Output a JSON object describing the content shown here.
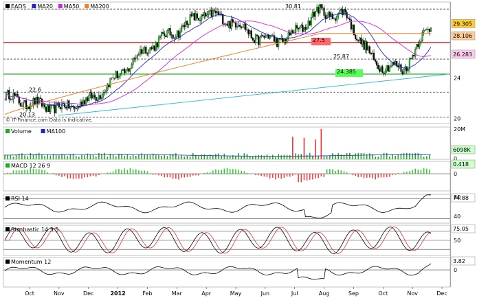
{
  "chart_data": [
    {
      "type": "candlestick",
      "panel": "price",
      "title": "EADS",
      "legend": [
        {
          "label": "EADS",
          "color": "#000000"
        },
        {
          "label": "MA20",
          "color": "#2222cc"
        },
        {
          "label": "MA50",
          "color": "#dd22dd"
        },
        {
          "label": "MA200",
          "color": "#f08020"
        }
      ],
      "watermark": "© IT-Finance.com   Data is Indicative.",
      "y_ticks": [
        "28",
        "24",
        "20"
      ],
      "ylim": [
        19.5,
        31.5
      ],
      "x_ticks": [
        "Oct",
        "Nov",
        "Dec",
        "2012",
        "Feb",
        "Mar",
        "Apr",
        "May",
        "Jun",
        "Jul",
        "Aug",
        "Sep",
        "Oct",
        "Nov",
        "Dec"
      ],
      "last_price": "29.305",
      "ma_values": {
        "ma200": "28.106",
        "ma20": "26.283",
        "ma50": "26.??"
      },
      "levels": [
        {
          "label": "30.81",
          "value": 30.81,
          "color": "#444444",
          "style": "dashed"
        },
        {
          "label": "27.5",
          "value": 27.5,
          "color": "#cc0000",
          "style": "solid"
        },
        {
          "label": "25.87",
          "value": 25.87,
          "color": "#444444",
          "style": "dashed"
        },
        {
          "label": "24.385",
          "value": 24.385,
          "color": "#00aa00",
          "style": "solid"
        },
        {
          "label": "22.6",
          "value": 22.6,
          "color": "#444444",
          "style": "dashed"
        },
        {
          "label": "20.13",
          "value": 20.13,
          "color": "#444444",
          "style": "dashed"
        }
      ],
      "trendline": {
        "color": "#22bbcc",
        "from": {
          "date": "Nov",
          "value": 20.3
        },
        "to": {
          "date": "Dec",
          "value": 24.4
        }
      },
      "close_series": {
        "dates": [
          "Sep 2011",
          "Oct 2011",
          "Nov 2011",
          "Dec 2011",
          "Jan 2012",
          "Feb 2012",
          "Mar 2012",
          "Apr 2012",
          "May 2012",
          "Jun 2012",
          "Jul 2012",
          "Aug 2012",
          "Sep 2012",
          "Oct 2012",
          "Nov 2012",
          "Dec 2012"
        ],
        "values": [
          22.2,
          21.4,
          21.0,
          21.8,
          24.2,
          27.0,
          28.6,
          30.4,
          29.6,
          27.8,
          27.9,
          30.5,
          30.2,
          25.5,
          24.8,
          29.3
        ]
      }
    },
    {
      "type": "bar",
      "panel": "volume",
      "legend": [
        {
          "label": "Volume",
          "color": "#22aa22"
        },
        {
          "label": "MA100",
          "color": "#2222cc"
        }
      ],
      "y_ticks": [
        "20M",
        "0"
      ],
      "last_value": "6098K"
    },
    {
      "type": "bar",
      "panel": "macd",
      "legend": [
        {
          "label": "MACD 12 26 9",
          "color": "#22aa22"
        }
      ],
      "y_ticks": [
        "0"
      ],
      "last_value": "0.418"
    },
    {
      "type": "line",
      "panel": "rsi",
      "legend": [
        {
          "label": "RSI 14",
          "color": "#000000"
        }
      ],
      "y_ticks": [
        "80",
        "40"
      ],
      "last_value": "74.88",
      "ylim": [
        20,
        90
      ]
    },
    {
      "type": "line",
      "panel": "stochastic",
      "legend": [
        {
          "label": "Stochastic 14 3 5",
          "color": "#000000"
        }
      ],
      "y_ticks": [
        "50"
      ],
      "last_value": "75.05",
      "ylim": [
        0,
        100
      ]
    },
    {
      "type": "line",
      "panel": "momentum",
      "legend": [
        {
          "label": "Momentum 12",
          "color": "#000000"
        }
      ],
      "y_ticks": [
        "0"
      ],
      "last_value": "3.82"
    }
  ]
}
